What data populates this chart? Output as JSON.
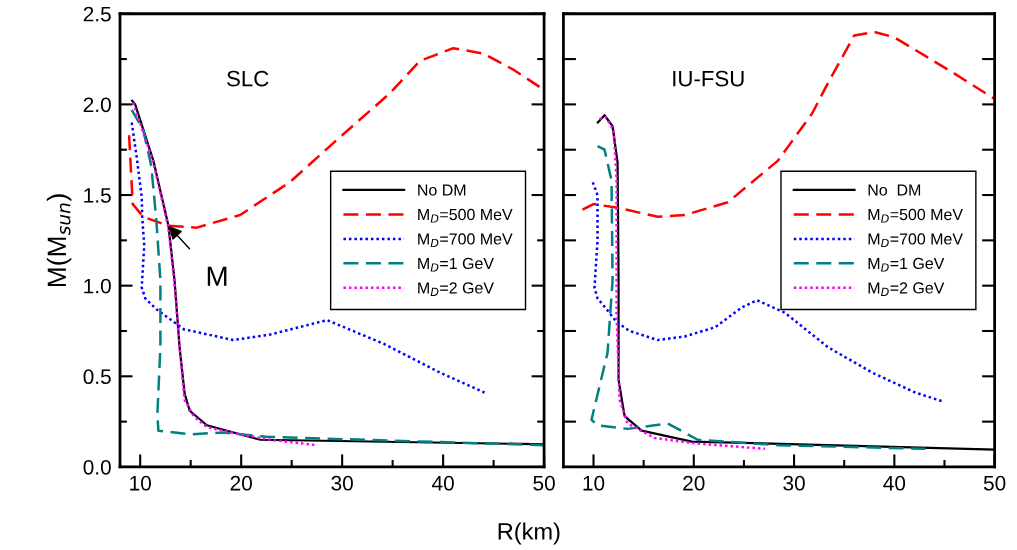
{
  "chart_data": [
    {
      "type": "line",
      "xlabel": "R(km)",
      "ylabel": "M(M$_{sun}$)",
      "legend": "right",
      "grid": false,
      "tick_labels": "xy",
      "marker": "none",
      "xlim": [
        8,
        50
      ],
      "xticks": [
        10,
        {
          "value": 15,
          "label": null
        },
        20,
        {
          "value": 25,
          "label": null
        },
        30,
        {
          "value": 35,
          "label": null
        },
        40,
        {
          "value": 45,
          "label": null
        },
        50
      ],
      "ylim": [
        0,
        2.5
      ],
      "yticks": [
        {
          "value": 0,
          "label": "0.0"
        },
        {
          "value": 0.25,
          "label": null
        },
        {
          "value": 0.5,
          "label": "0.5"
        },
        {
          "value": 0.75,
          "label": null
        },
        {
          "value": 1.0,
          "label": "1.0"
        },
        {
          "value": 1.25,
          "label": null
        },
        {
          "value": 1.5,
          "label": "1.5"
        },
        {
          "value": 1.75,
          "label": null
        },
        {
          "value": 2.0,
          "label": "2.0"
        },
        {
          "value": 2.25,
          "label": null
        },
        {
          "value": 2.5,
          "label": "2.5"
        }
      ],
      "annotations": [
        "SLC",
        {
          "text": "M",
          "x": 12.8,
          "y": 1.33
        }
      ],
      "series": [
        {
          "name": "No DM",
          "color": "#000000",
          "line_style": "solid",
          "x": [
            9.2,
            9.5,
            11.3,
            12.8,
            13.4,
            13.9,
            14.4,
            14.9,
            16.6,
            21.9,
            50
          ],
          "values": [
            2.02,
            2.0,
            1.69,
            1.33,
            1.03,
            0.66,
            0.405,
            0.31,
            0.23,
            0.15,
            0.125
          ]
        },
        {
          "name": "M$_{D}$=500 MeV",
          "color": "#ff0000",
          "line_style": "dashed",
          "x": [
            8.9,
            9.26,
            10.3,
            12.8,
            15.6,
            19.9,
            24.8,
            29.8,
            34.7,
            37.7,
            41.0,
            44.0,
            47.0,
            50
          ],
          "values": [
            1.83,
            1.45,
            1.38,
            1.33,
            1.32,
            1.39,
            1.57,
            1.82,
            2.06,
            2.24,
            2.31,
            2.28,
            2.19,
            2.08
          ]
        },
        {
          "name": "M$_{D}$=700 MeV",
          "color": "#0000ff",
          "line_style": "dotted",
          "x": [
            9.16,
            9.65,
            10.15,
            10.2,
            10.4,
            10.15,
            10.5,
            11.6,
            14.3,
            19.2,
            22.85,
            28.5,
            34.1,
            39.7,
            44.1
          ],
          "values": [
            1.9,
            1.71,
            1.49,
            1.38,
            1.22,
            0.99,
            0.93,
            0.87,
            0.76,
            0.7,
            0.73,
            0.81,
            0.68,
            0.52,
            0.41
          ]
        },
        {
          "name": "M$_{D}$=1 GeV",
          "color": "#008080",
          "line_style": "dashed",
          "x": [
            9.16,
            10.3,
            11.1,
            11.6,
            12.0,
            12.0,
            11.7,
            11.8,
            14.9,
            18.2,
            22.5,
            50
          ],
          "values": [
            1.97,
            1.86,
            1.66,
            1.36,
            1.03,
            0.66,
            0.29,
            0.2,
            0.18,
            0.19,
            0.166,
            0.12
          ]
        },
        {
          "name": "M$_{D}$=2 GeV",
          "color": "#ff00ff",
          "line_style": "dotted",
          "x": [
            9.3,
            11.3,
            12.8,
            13.4,
            13.9,
            14.4,
            15.3,
            16.6,
            19.9,
            22.9,
            27.5
          ],
          "values": [
            2.01,
            1.68,
            1.32,
            1.01,
            0.66,
            0.37,
            0.28,
            0.22,
            0.18,
            0.15,
            0.12
          ]
        }
      ]
    },
    {
      "type": "line",
      "legend": "right",
      "grid": false,
      "tick_labels": "x",
      "marker": "none",
      "xlim": [
        7,
        50
      ],
      "xticks": [
        10,
        {
          "value": 15,
          "label": null
        },
        20,
        {
          "value": 25,
          "label": null
        },
        30,
        {
          "value": 35,
          "label": null
        },
        40,
        {
          "value": 45,
          "label": null
        },
        50
      ],
      "ylim": [
        0,
        2.5
      ],
      "yticks": [
        0,
        0.25,
        0.5,
        0.75,
        1.0,
        1.25,
        1.5,
        1.75,
        2.0,
        2.25,
        2.5
      ],
      "annotations": [
        "IU-FSU"
      ],
      "series": [
        {
          "name": "No  DM",
          "color": "#000000",
          "line_style": "solid",
          "x": [
            10.43,
            11.1,
            11.9,
            12.4,
            12.5,
            12.5,
            13.1,
            14.8,
            19.8,
            50
          ],
          "values": [
            1.9,
            1.94,
            1.88,
            1.68,
            1.03,
            0.48,
            0.28,
            0.2,
            0.14,
            0.096
          ]
        },
        {
          "name": "M$_{D}$=500 MeV",
          "color": "#ff0000",
          "line_style": "dashed",
          "x": [
            8.9,
            10.0,
            12.4,
            16.4,
            19.1,
            23.4,
            28.4,
            31.8,
            33.4,
            36.0,
            38.0,
            40.0,
            43.0,
            46.0,
            50
          ],
          "values": [
            1.42,
            1.45,
            1.43,
            1.38,
            1.39,
            1.46,
            1.69,
            1.95,
            2.12,
            2.38,
            2.4,
            2.37,
            2.27,
            2.17,
            2.03
          ]
        },
        {
          "name": "M$_{D}$=700 MeV",
          "color": "#0000ff",
          "line_style": "dotted",
          "x": [
            9.93,
            10.4,
            10.4,
            10.1,
            10.4,
            11.3,
            12.3,
            13.6,
            16.4,
            19.1,
            22.1,
            24.8,
            26.3,
            29.1,
            33.4,
            37.8,
            42.1,
            44.9
          ],
          "values": [
            1.57,
            1.5,
            1.25,
            0.99,
            0.93,
            0.87,
            0.8,
            0.75,
            0.7,
            0.72,
            0.77,
            0.88,
            0.92,
            0.85,
            0.66,
            0.52,
            0.41,
            0.36
          ]
        },
        {
          "name": "M$_{D}$=1 GeV",
          "color": "#008080",
          "line_style": "dashed",
          "x": [
            10.4,
            11.1,
            11.8,
            11.9,
            11.4,
            9.8,
            10.4,
            13.4,
            17.4,
            20.4,
            28.4,
            43.1
          ],
          "values": [
            1.77,
            1.75,
            1.58,
            1.03,
            0.63,
            0.26,
            0.23,
            0.21,
            0.24,
            0.15,
            0.12,
            0.1
          ]
        },
        {
          "name": "M$_{D}$=2 GeV",
          "color": "#ff00ff",
          "line_style": "dotted",
          "x": [
            10.6,
            11.2,
            12.0,
            12.3,
            12.3,
            12.6,
            13.4,
            16.1,
            20.1,
            27.1
          ],
          "values": [
            1.92,
            1.93,
            1.86,
            1.59,
            0.85,
            0.37,
            0.24,
            0.16,
            0.13,
            0.1
          ]
        }
      ]
    }
  ]
}
